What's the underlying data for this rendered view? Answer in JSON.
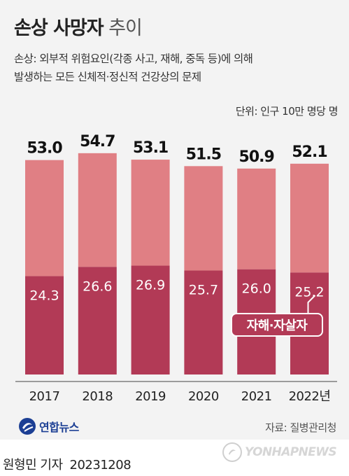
{
  "header": {
    "title_bold": "손상 사망자",
    "title_light": "추이",
    "desc_line1": "손상: 외부적 위험요인(각종 사고, 재해, 중독 등)에 의해",
    "desc_line2": "발생하는 모든 신체적·정신적 건강상의 문제",
    "unit": "단위: 인구 10만 명당 명"
  },
  "chart_data": {
    "type": "bar",
    "categories": [
      "2017",
      "2018",
      "2019",
      "2020",
      "2021",
      "2022년"
    ],
    "series": [
      {
        "name": "자해·자살자",
        "values": [
          24.3,
          26.6,
          26.9,
          25.7,
          26.0,
          25.2
        ],
        "color": "#b23a56"
      },
      {
        "values": [
          28.7,
          28.1,
          26.2,
          25.8,
          24.9,
          26.9
        ],
        "color": "#e07f84"
      }
    ],
    "totals": [
      53.0,
      54.7,
      53.1,
      51.5,
      50.9,
      52.1
    ],
    "total_labels": [
      "53.0",
      "54.7",
      "53.1",
      "51.5",
      "50.9",
      "52.1"
    ],
    "inner_labels": [
      "24.3",
      "26.6",
      "26.9",
      "25.7",
      "26.0",
      "25.2"
    ],
    "stacked": true,
    "ylim": [
      0,
      55
    ]
  },
  "callout": {
    "label": "자해·자살자"
  },
  "footer": {
    "logo_text": "연합뉴스",
    "source": "자료: 질병관리청",
    "watermark": "YONHAPNEWS",
    "reporter": "원형민 기자",
    "date": "20231208"
  },
  "colors": {
    "self_harm": "#b23a56",
    "other": "#e07f84",
    "background": "#f3f3f3"
  }
}
